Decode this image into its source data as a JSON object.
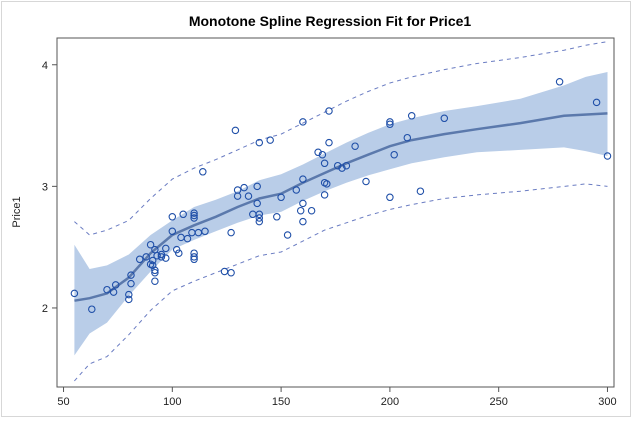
{
  "chart_data": {
    "type": "scatter",
    "title": "Monotone Spline Regression Fit for Price1",
    "xlabel": "",
    "ylabel": "Price1",
    "xlim": [
      47,
      303
    ],
    "ylim": [
      1.35,
      4.22
    ],
    "xticks": [
      50,
      100,
      150,
      200,
      250,
      300
    ],
    "yticks": [
      2,
      3,
      4
    ],
    "x_tick_labels": [
      "50",
      "100",
      "150",
      "200",
      "250",
      "300"
    ],
    "y_tick_labels": [
      "2",
      "3",
      "4"
    ],
    "grid": false,
    "legend": "none",
    "colors": {
      "fit_line": "#5b79ac",
      "confidence_band": "#b9cde8",
      "prediction_limits": "#6a7cc2",
      "points": "#1f4fa8"
    },
    "points": [
      [
        55,
        2.12
      ],
      [
        63,
        1.99
      ],
      [
        70,
        2.15
      ],
      [
        73,
        2.13
      ],
      [
        74,
        2.19
      ],
      [
        80,
        2.07
      ],
      [
        80,
        2.11
      ],
      [
        81,
        2.27
      ],
      [
        81,
        2.2
      ],
      [
        85,
        2.4
      ],
      [
        88,
        2.42
      ],
      [
        90,
        2.36
      ],
      [
        90,
        2.52
      ],
      [
        91,
        2.39
      ],
      [
        91,
        2.35
      ],
      [
        92,
        2.31
      ],
      [
        92,
        2.48
      ],
      [
        92,
        2.29
      ],
      [
        92,
        2.22
      ],
      [
        93,
        2.43
      ],
      [
        95,
        2.42
      ],
      [
        95,
        2.44
      ],
      [
        97,
        2.41
      ],
      [
        97,
        2.49
      ],
      [
        100,
        2.75
      ],
      [
        100,
        2.63
      ],
      [
        102,
        2.48
      ],
      [
        103,
        2.45
      ],
      [
        104,
        2.58
      ],
      [
        105,
        2.77
      ],
      [
        107,
        2.57
      ],
      [
        109,
        2.62
      ],
      [
        110,
        2.78
      ],
      [
        110,
        2.76
      ],
      [
        110,
        2.74
      ],
      [
        110,
        2.45
      ],
      [
        110,
        2.42
      ],
      [
        110,
        2.4
      ],
      [
        112,
        2.62
      ],
      [
        114,
        3.12
      ],
      [
        115,
        2.63
      ],
      [
        124,
        2.3
      ],
      [
        127,
        2.29
      ],
      [
        127,
        2.62
      ],
      [
        129,
        3.46
      ],
      [
        130,
        2.97
      ],
      [
        130,
        2.92
      ],
      [
        133,
        2.99
      ],
      [
        135,
        2.92
      ],
      [
        137,
        2.77
      ],
      [
        139,
        3.0
      ],
      [
        139,
        2.86
      ],
      [
        140,
        2.71
      ],
      [
        140,
        2.77
      ],
      [
        140,
        2.74
      ],
      [
        140,
        3.36
      ],
      [
        145,
        3.38
      ],
      [
        148,
        2.75
      ],
      [
        150,
        2.91
      ],
      [
        153,
        2.6
      ],
      [
        157,
        2.97
      ],
      [
        159,
        2.8
      ],
      [
        160,
        3.06
      ],
      [
        160,
        2.86
      ],
      [
        160,
        2.71
      ],
      [
        160,
        3.53
      ],
      [
        164,
        2.8
      ],
      [
        167,
        3.28
      ],
      [
        169,
        3.26
      ],
      [
        170,
        3.19
      ],
      [
        170,
        3.03
      ],
      [
        170,
        2.93
      ],
      [
        171,
        3.02
      ],
      [
        172,
        3.36
      ],
      [
        172,
        3.62
      ],
      [
        176,
        3.17
      ],
      [
        178,
        3.15
      ],
      [
        180,
        3.17
      ],
      [
        184,
        3.33
      ],
      [
        189,
        3.04
      ],
      [
        200,
        3.51
      ],
      [
        200,
        3.53
      ],
      [
        200,
        2.91
      ],
      [
        202,
        3.26
      ],
      [
        208,
        3.4
      ],
      [
        210,
        3.58
      ],
      [
        214,
        2.96
      ],
      [
        225,
        3.56
      ],
      [
        278,
        3.86
      ],
      [
        295,
        3.69
      ],
      [
        300,
        3.25
      ]
    ],
    "fit": [
      [
        55,
        2.06
      ],
      [
        62,
        2.08
      ],
      [
        70,
        2.12
      ],
      [
        80,
        2.25
      ],
      [
        90,
        2.45
      ],
      [
        100,
        2.6
      ],
      [
        110,
        2.68
      ],
      [
        120,
        2.75
      ],
      [
        130,
        2.83
      ],
      [
        140,
        2.9
      ],
      [
        150,
        2.94
      ],
      [
        160,
        3.03
      ],
      [
        170,
        3.11
      ],
      [
        180,
        3.19
      ],
      [
        190,
        3.26
      ],
      [
        200,
        3.33
      ],
      [
        210,
        3.38
      ],
      [
        225,
        3.43
      ],
      [
        240,
        3.47
      ],
      [
        260,
        3.52
      ],
      [
        280,
        3.58
      ],
      [
        300,
        3.6
      ]
    ],
    "confidence_band": {
      "upper": [
        [
          55,
          2.52
        ],
        [
          62,
          2.32
        ],
        [
          70,
          2.35
        ],
        [
          80,
          2.44
        ],
        [
          90,
          2.6
        ],
        [
          100,
          2.72
        ],
        [
          110,
          2.83
        ],
        [
          120,
          2.89
        ],
        [
          130,
          2.96
        ],
        [
          140,
          3.05
        ],
        [
          150,
          3.1
        ],
        [
          160,
          3.18
        ],
        [
          170,
          3.27
        ],
        [
          180,
          3.36
        ],
        [
          190,
          3.44
        ],
        [
          200,
          3.51
        ],
        [
          210,
          3.56
        ],
        [
          225,
          3.62
        ],
        [
          240,
          3.66
        ],
        [
          260,
          3.72
        ],
        [
          280,
          3.83
        ],
        [
          290,
          3.9
        ],
        [
          300,
          3.94
        ]
      ],
      "lower": [
        [
          55,
          1.61
        ],
        [
          62,
          1.79
        ],
        [
          70,
          1.88
        ],
        [
          80,
          2.1
        ],
        [
          90,
          2.3
        ],
        [
          100,
          2.48
        ],
        [
          110,
          2.56
        ],
        [
          120,
          2.63
        ],
        [
          130,
          2.7
        ],
        [
          140,
          2.76
        ],
        [
          150,
          2.79
        ],
        [
          160,
          2.88
        ],
        [
          170,
          2.96
        ],
        [
          180,
          3.03
        ],
        [
          190,
          3.09
        ],
        [
          200,
          3.14
        ],
        [
          210,
          3.19
        ],
        [
          225,
          3.24
        ],
        [
          240,
          3.28
        ],
        [
          260,
          3.3
        ],
        [
          280,
          3.32
        ],
        [
          290,
          3.29
        ],
        [
          300,
          3.25
        ]
      ]
    },
    "prediction_limits": {
      "upper": [
        [
          55,
          2.71
        ],
        [
          62,
          2.6
        ],
        [
          70,
          2.64
        ],
        [
          80,
          2.72
        ],
        [
          90,
          2.9
        ],
        [
          100,
          3.06
        ],
        [
          110,
          3.15
        ],
        [
          120,
          3.22
        ],
        [
          130,
          3.3
        ],
        [
          140,
          3.38
        ],
        [
          150,
          3.43
        ],
        [
          160,
          3.52
        ],
        [
          170,
          3.61
        ],
        [
          180,
          3.7
        ],
        [
          190,
          3.78
        ],
        [
          200,
          3.85
        ],
        [
          210,
          3.9
        ],
        [
          225,
          3.96
        ],
        [
          240,
          4.01
        ],
        [
          260,
          4.06
        ],
        [
          280,
          4.12
        ],
        [
          290,
          4.16
        ],
        [
          300,
          4.19
        ]
      ],
      "lower": [
        [
          55,
          1.4
        ],
        [
          62,
          1.54
        ],
        [
          70,
          1.6
        ],
        [
          80,
          1.78
        ],
        [
          90,
          1.98
        ],
        [
          100,
          2.14
        ],
        [
          110,
          2.22
        ],
        [
          120,
          2.29
        ],
        [
          130,
          2.36
        ],
        [
          140,
          2.43
        ],
        [
          150,
          2.46
        ],
        [
          160,
          2.55
        ],
        [
          170,
          2.64
        ],
        [
          180,
          2.7
        ],
        [
          190,
          2.76
        ],
        [
          200,
          2.81
        ],
        [
          210,
          2.85
        ],
        [
          225,
          2.9
        ],
        [
          240,
          2.93
        ],
        [
          260,
          2.96
        ],
        [
          280,
          3.0
        ],
        [
          290,
          3.02
        ],
        [
          300,
          3.0
        ]
      ]
    }
  }
}
